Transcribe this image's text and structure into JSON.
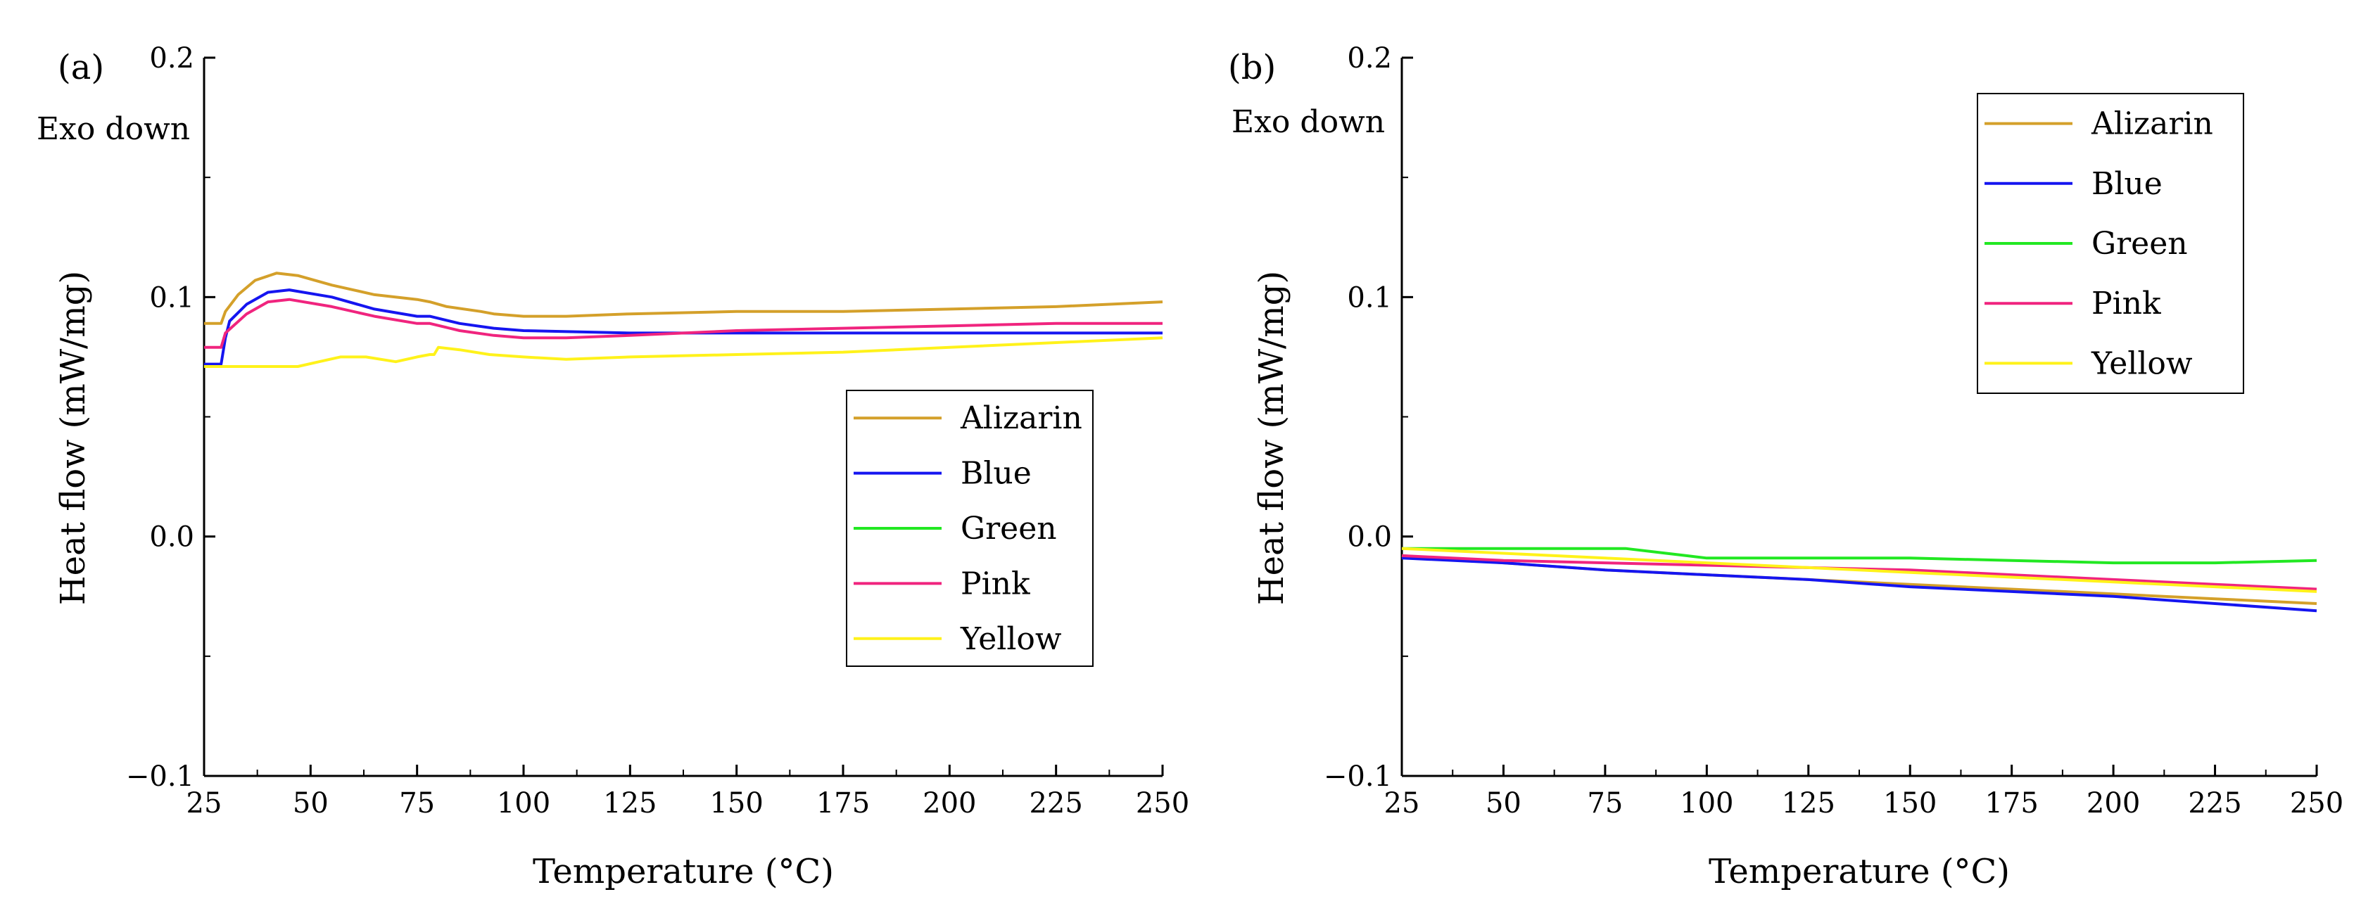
{
  "chart_data": [
    {
      "type": "line",
      "panel_label": "(a)",
      "annotation": "Exo down",
      "xlabel": "Temperature (°C)",
      "ylabel": "Heat flow (mW/mg)",
      "xlim": [
        25,
        250
      ],
      "ylim": [
        -0.1,
        0.2
      ],
      "x_ticks": [
        "25",
        "50",
        "75",
        "100",
        "125",
        "150",
        "175",
        "200",
        "225",
        "250"
      ],
      "y_ticks": [
        "−0.1",
        "0.0",
        "0.1",
        "0.2"
      ],
      "legend_position": "center-right",
      "series": [
        {
          "name": "Alizarin",
          "color": "#D4A02A",
          "points": [
            [
              25,
              0.089
            ],
            [
              29,
              0.089
            ],
            [
              30,
              0.094
            ],
            [
              33,
              0.101
            ],
            [
              37,
              0.107
            ],
            [
              42,
              0.11
            ],
            [
              47,
              0.109
            ],
            [
              55,
              0.105
            ],
            [
              65,
              0.101
            ],
            [
              75,
              0.099
            ],
            [
              78,
              0.098
            ],
            [
              82,
              0.096
            ],
            [
              90,
              0.094
            ],
            [
              93,
              0.093
            ],
            [
              100,
              0.092
            ],
            [
              110,
              0.092
            ],
            [
              125,
              0.093
            ],
            [
              150,
              0.094
            ],
            [
              175,
              0.094
            ],
            [
              200,
              0.095
            ],
            [
              225,
              0.096
            ],
            [
              250,
              0.098
            ]
          ]
        },
        {
          "name": "Blue",
          "color": "#1515F0",
          "points": [
            [
              25,
              0.072
            ],
            [
              29,
              0.072
            ],
            [
              30,
              0.083
            ],
            [
              31,
              0.09
            ],
            [
              35,
              0.097
            ],
            [
              40,
              0.102
            ],
            [
              45,
              0.103
            ],
            [
              55,
              0.1
            ],
            [
              65,
              0.095
            ],
            [
              75,
              0.092
            ],
            [
              78,
              0.092
            ],
            [
              85,
              0.089
            ],
            [
              93,
              0.087
            ],
            [
              100,
              0.086
            ],
            [
              125,
              0.085
            ],
            [
              150,
              0.085
            ],
            [
              175,
              0.085
            ],
            [
              200,
              0.085
            ],
            [
              225,
              0.085
            ],
            [
              250,
              0.085
            ]
          ]
        },
        {
          "name": "Green",
          "color": "#22E822",
          "points": []
        },
        {
          "name": "Pink",
          "color": "#F0247E",
          "points": [
            [
              25,
              0.079
            ],
            [
              29,
              0.079
            ],
            [
              30,
              0.085
            ],
            [
              35,
              0.093
            ],
            [
              40,
              0.098
            ],
            [
              45,
              0.099
            ],
            [
              55,
              0.096
            ],
            [
              65,
              0.092
            ],
            [
              75,
              0.089
            ],
            [
              78,
              0.089
            ],
            [
              85,
              0.086
            ],
            [
              93,
              0.084
            ],
            [
              100,
              0.083
            ],
            [
              110,
              0.083
            ],
            [
              125,
              0.084
            ],
            [
              150,
              0.086
            ],
            [
              175,
              0.087
            ],
            [
              200,
              0.088
            ],
            [
              225,
              0.089
            ],
            [
              250,
              0.089
            ]
          ]
        },
        {
          "name": "Yellow",
          "color": "#FFF21A",
          "points": [
            [
              25,
              0.071
            ],
            [
              47,
              0.071
            ],
            [
              52,
              0.073
            ],
            [
              57,
              0.075
            ],
            [
              63,
              0.075
            ],
            [
              70,
              0.073
            ],
            [
              75,
              0.075
            ],
            [
              78,
              0.076
            ],
            [
              79,
              0.076
            ],
            [
              80,
              0.079
            ],
            [
              85,
              0.078
            ],
            [
              92,
              0.076
            ],
            [
              100,
              0.075
            ],
            [
              110,
              0.074
            ],
            [
              125,
              0.075
            ],
            [
              150,
              0.076
            ],
            [
              175,
              0.077
            ],
            [
              200,
              0.079
            ],
            [
              225,
              0.081
            ],
            [
              250,
              0.083
            ]
          ]
        }
      ]
    },
    {
      "type": "line",
      "panel_label": "(b)",
      "annotation": "Exo down",
      "xlabel": "Temperature (°C)",
      "ylabel": "Heat flow (mW/mg)",
      "xlim": [
        25,
        250
      ],
      "ylim": [
        -0.1,
        0.2
      ],
      "x_ticks": [
        "25",
        "50",
        "75",
        "100",
        "125",
        "150",
        "175",
        "200",
        "225",
        "250"
      ],
      "y_ticks": [
        "−0.1",
        "0.0",
        "0.1",
        "0.2"
      ],
      "legend_position": "top-right",
      "series": [
        {
          "name": "Alizarin",
          "color": "#D4A02A",
          "points": [
            [
              25,
              -0.008
            ],
            [
              50,
              -0.011
            ],
            [
              75,
              -0.014
            ],
            [
              100,
              -0.016
            ],
            [
              125,
              -0.018
            ],
            [
              150,
              -0.02
            ],
            [
              175,
              -0.022
            ],
            [
              200,
              -0.024
            ],
            [
              225,
              -0.026
            ],
            [
              250,
              -0.028
            ]
          ]
        },
        {
          "name": "Blue",
          "color": "#1515F0",
          "points": [
            [
              25,
              -0.009
            ],
            [
              50,
              -0.011
            ],
            [
              75,
              -0.014
            ],
            [
              100,
              -0.016
            ],
            [
              125,
              -0.018
            ],
            [
              150,
              -0.021
            ],
            [
              175,
              -0.023
            ],
            [
              200,
              -0.025
            ],
            [
              225,
              -0.028
            ],
            [
              250,
              -0.031
            ]
          ]
        },
        {
          "name": "Green",
          "color": "#22E822",
          "points": [
            [
              25,
              -0.005
            ],
            [
              50,
              -0.005
            ],
            [
              80,
              -0.005
            ],
            [
              90,
              -0.007
            ],
            [
              95,
              -0.008
            ],
            [
              100,
              -0.009
            ],
            [
              125,
              -0.009
            ],
            [
              150,
              -0.009
            ],
            [
              175,
              -0.01
            ],
            [
              200,
              -0.011
            ],
            [
              225,
              -0.011
            ],
            [
              250,
              -0.01
            ]
          ]
        },
        {
          "name": "Pink",
          "color": "#F0247E",
          "points": [
            [
              25,
              -0.008
            ],
            [
              50,
              -0.01
            ],
            [
              75,
              -0.011
            ],
            [
              100,
              -0.012
            ],
            [
              125,
              -0.013
            ],
            [
              150,
              -0.014
            ],
            [
              175,
              -0.016
            ],
            [
              200,
              -0.018
            ],
            [
              225,
              -0.02
            ],
            [
              250,
              -0.022
            ]
          ]
        },
        {
          "name": "Yellow",
          "color": "#FFF21A",
          "points": [
            [
              25,
              -0.005
            ],
            [
              50,
              -0.007
            ],
            [
              75,
              -0.009
            ],
            [
              100,
              -0.011
            ],
            [
              125,
              -0.013
            ],
            [
              150,
              -0.015
            ],
            [
              175,
              -0.017
            ],
            [
              200,
              -0.019
            ],
            [
              225,
              -0.021
            ],
            [
              250,
              -0.023
            ]
          ]
        }
      ]
    }
  ]
}
